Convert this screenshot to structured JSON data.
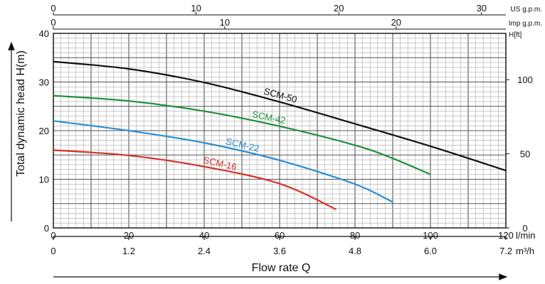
{
  "chart_data": {
    "type": "line",
    "ylabel": "Total dynamic head H(m)",
    "xlabel": "Flow rate Q",
    "xlim": [
      0,
      120
    ],
    "ylim": [
      0,
      40
    ],
    "grid": true,
    "primary_x_unit": "l/min",
    "primary_x_ticks": [
      0,
      20,
      40,
      60,
      80,
      100,
      120
    ],
    "secondary_x_unit": "m³/h",
    "secondary_x_ticks": [
      0,
      1.2,
      2.4,
      3.6,
      4.8,
      6.0,
      7.2
    ],
    "secondary_x_tick_labels": [
      "0",
      "1.2",
      "2.4",
      "3.6",
      "4.8",
      "6.0",
      "7.2"
    ],
    "top_axes": [
      {
        "unit": "US g.p.m.",
        "ticks": [
          0,
          10,
          20,
          30
        ],
        "per_lpm": 0.2642
      },
      {
        "unit": "Imp g.p.m.",
        "ticks": [
          0,
          10,
          20
        ],
        "per_lpm": 0.22
      }
    ],
    "right_axis": {
      "unit": "H[ft]",
      "ticks": [
        0,
        50,
        100
      ],
      "per_m": 3.2808
    },
    "y_ticks": [
      0,
      10,
      20,
      30,
      40
    ],
    "series": [
      {
        "name": "SCM-50",
        "color": "#111111",
        "x": [
          0,
          20,
          40,
          60,
          80,
          100,
          120
        ],
        "y": [
          34.2,
          32.7,
          29.9,
          25.9,
          21.4,
          16.8,
          11.8
        ]
      },
      {
        "name": "SCM-42",
        "color": "#1f8f3a",
        "x": [
          0,
          20,
          40,
          60,
          80,
          90,
          100
        ],
        "y": [
          27.2,
          26.1,
          24.0,
          20.9,
          17.0,
          14.3,
          11.0
        ]
      },
      {
        "name": "SCM-22",
        "color": "#2a8fd4",
        "x": [
          0,
          20,
          40,
          60,
          80,
          90
        ],
        "y": [
          22.0,
          20.0,
          17.5,
          13.9,
          9.0,
          5.3
        ]
      },
      {
        "name": "SCM-16",
        "color": "#d4322a",
        "x": [
          0,
          20,
          40,
          60,
          75
        ],
        "y": [
          16.0,
          14.9,
          12.6,
          9.1,
          3.8
        ]
      }
    ]
  }
}
